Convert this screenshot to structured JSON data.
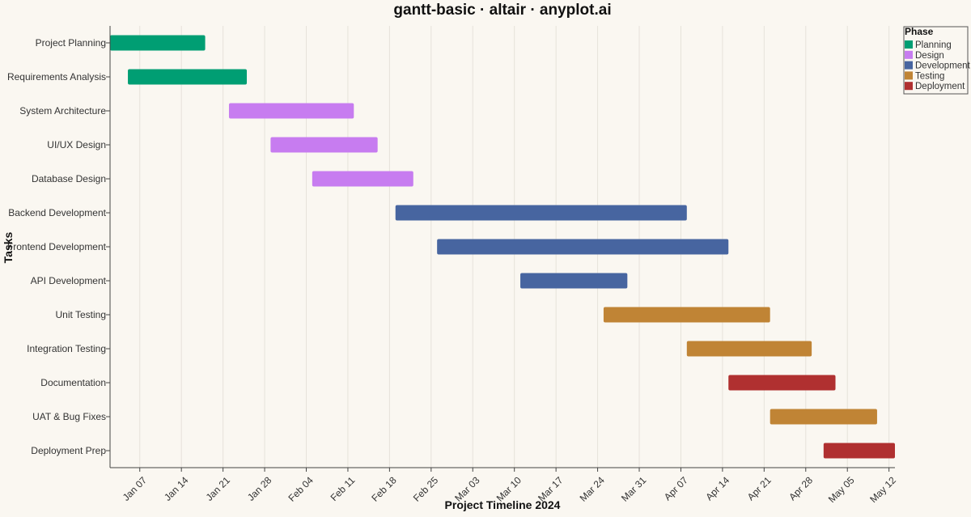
{
  "chart_data": {
    "type": "gantt",
    "title": "gantt-basic · altair · anyplot.ai",
    "xlabel": "Project Timeline 2024",
    "ylabel": "Tasks",
    "xlim": [
      "2024-01-02",
      "2024-05-13"
    ],
    "x_ticks": [
      "2024-01-07",
      "2024-01-14",
      "2024-01-21",
      "2024-01-28",
      "2024-02-04",
      "2024-02-11",
      "2024-02-18",
      "2024-02-25",
      "2024-03-03",
      "2024-03-10",
      "2024-03-17",
      "2024-03-24",
      "2024-03-31",
      "2024-04-07",
      "2024-04-14",
      "2024-04-21",
      "2024-04-28",
      "2024-05-05",
      "2024-05-12"
    ],
    "x_tick_labels": [
      "Jan 07",
      "Jan 14",
      "Jan 21",
      "Jan 28",
      "Feb 04",
      "Feb 11",
      "Feb 18",
      "Feb 25",
      "Mar 03",
      "Mar 10",
      "Mar 17",
      "Mar 24",
      "Mar 31",
      "Apr 07",
      "Apr 14",
      "Apr 21",
      "Apr 28",
      "May 05",
      "May 12"
    ],
    "grid": "vertical",
    "legend": {
      "title": "Phase",
      "placement": "top-right",
      "entries": [
        {
          "name": "Planning",
          "color": "#009e73"
        },
        {
          "name": "Design",
          "color": "#c77cf0"
        },
        {
          "name": "Development",
          "color": "#4765a0"
        },
        {
          "name": "Testing",
          "color": "#c08435"
        },
        {
          "name": "Deployment",
          "color": "#b03030"
        }
      ]
    },
    "tasks": [
      {
        "name": "Project Planning",
        "phase": "Planning",
        "start": "2024-01-02",
        "end": "2024-01-18"
      },
      {
        "name": "Requirements Analysis",
        "phase": "Planning",
        "start": "2024-01-05",
        "end": "2024-01-25"
      },
      {
        "name": "System Architecture",
        "phase": "Design",
        "start": "2024-01-22",
        "end": "2024-02-12"
      },
      {
        "name": "UI/UX Design",
        "phase": "Design",
        "start": "2024-01-29",
        "end": "2024-02-16"
      },
      {
        "name": "Database Design",
        "phase": "Design",
        "start": "2024-02-05",
        "end": "2024-02-22"
      },
      {
        "name": "Backend Development",
        "phase": "Development",
        "start": "2024-02-19",
        "end": "2024-04-08"
      },
      {
        "name": "Frontend Development",
        "phase": "Development",
        "start": "2024-02-26",
        "end": "2024-04-15"
      },
      {
        "name": "API Development",
        "phase": "Development",
        "start": "2024-03-11",
        "end": "2024-03-29"
      },
      {
        "name": "Unit Testing",
        "phase": "Testing",
        "start": "2024-03-25",
        "end": "2024-04-22"
      },
      {
        "name": "Integration Testing",
        "phase": "Testing",
        "start": "2024-04-08",
        "end": "2024-04-29"
      },
      {
        "name": "Documentation",
        "phase": "Deployment",
        "start": "2024-04-15",
        "end": "2024-05-03"
      },
      {
        "name": "UAT & Bug Fixes",
        "phase": "Testing",
        "start": "2024-04-22",
        "end": "2024-05-10"
      },
      {
        "name": "Deployment Prep",
        "phase": "Deployment",
        "start": "2024-05-01",
        "end": "2024-05-13"
      }
    ]
  }
}
